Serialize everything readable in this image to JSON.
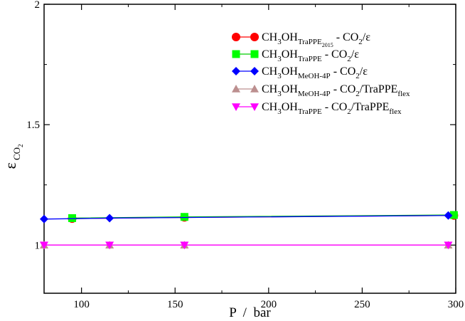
{
  "chart_data": {
    "type": "line",
    "xlabel": "P  /  bar",
    "ylabel_main": "ε",
    "ylabel_sub": "CO",
    "ylabel_subsub": "2",
    "xlim": [
      80,
      300
    ],
    "ylim": [
      0.8,
      2.0
    ],
    "x_ticks": [
      100,
      150,
      200,
      250,
      300
    ],
    "x_tick_labels": [
      "100",
      "150",
      "200",
      "250",
      "300"
    ],
    "y_ticks": [
      1.0,
      1.5,
      2.0
    ],
    "y_tick_labels": [
      "1",
      "1.5",
      "2"
    ],
    "grid": false,
    "legend_position": "top-right",
    "series": [
      {
        "name": "CH3OH TraPPE2015 - CO2/ε",
        "legend": [
          [
            "CH",
            ""
          ],
          [
            "3",
            "sub"
          ],
          [
            "OH",
            ""
          ],
          [
            "TraPPE",
            "sub"
          ],
          [
            "2015",
            "subsub"
          ],
          [
            " - CO",
            ""
          ],
          [
            "2",
            "sub"
          ],
          [
            "/ε",
            ""
          ]
        ],
        "color": "#ff0000",
        "line_color": "#ff0000",
        "marker": "circle",
        "x": [
          95,
          155,
          299
        ],
        "y": [
          1.11,
          1.115,
          1.123
        ]
      },
      {
        "name": "CH3OH TraPPE - CO2/ε",
        "legend": [
          [
            "CH",
            ""
          ],
          [
            "3",
            "sub"
          ],
          [
            "OH",
            ""
          ],
          [
            "TraPPE",
            "sub"
          ],
          [
            " - CO",
            ""
          ],
          [
            "2",
            "sub"
          ],
          [
            "/ε",
            ""
          ]
        ],
        "color": "#00ff00",
        "line_color": "#00cc00",
        "marker": "square",
        "x": [
          95,
          155,
          299
        ],
        "y": [
          1.112,
          1.117,
          1.125
        ]
      },
      {
        "name": "CH3OH MeOH-4P - CO2/ε",
        "legend": [
          [
            "CH",
            ""
          ],
          [
            "3",
            "sub"
          ],
          [
            "OH",
            ""
          ],
          [
            "MeOH-4P",
            "sub"
          ],
          [
            " - CO",
            ""
          ],
          [
            "2",
            "sub"
          ],
          [
            "/ε",
            ""
          ]
        ],
        "color": "#0000ff",
        "line_color": "#0000ff",
        "marker": "diamond",
        "x": [
          80,
          115,
          296
        ],
        "y": [
          1.108,
          1.112,
          1.123
        ]
      },
      {
        "name": "CH3OH MeOH-4P - CO2/TraPPEflex",
        "legend": [
          [
            "CH",
            ""
          ],
          [
            "3",
            "sub"
          ],
          [
            "OH",
            ""
          ],
          [
            "MeOH-4P",
            "sub"
          ],
          [
            " - CO",
            ""
          ],
          [
            "2",
            "sub"
          ],
          [
            "/TraPPE",
            ""
          ],
          [
            "flex",
            "sub"
          ]
        ],
        "color": "#bc8f8f",
        "line_color": "#bc8f8f",
        "marker": "triangle-up",
        "x": [
          80,
          115,
          155,
          296
        ],
        "y": [
          1.0,
          1.0,
          1.0,
          1.0
        ]
      },
      {
        "name": "CH3OH TraPPE - CO2/TraPPEflex",
        "legend": [
          [
            "CH",
            ""
          ],
          [
            "3",
            "sub"
          ],
          [
            "OH",
            ""
          ],
          [
            "TraPPE",
            "sub"
          ],
          [
            " - CO",
            ""
          ],
          [
            "2",
            "sub"
          ],
          [
            "/TraPPE",
            ""
          ],
          [
            "flex",
            "sub"
          ]
        ],
        "color": "#ff00ff",
        "line_color": "#ff00ff",
        "marker": "triangle-down",
        "x": [
          80,
          115,
          155,
          296
        ],
        "y": [
          1.0,
          1.0,
          1.0,
          1.0
        ]
      }
    ]
  }
}
